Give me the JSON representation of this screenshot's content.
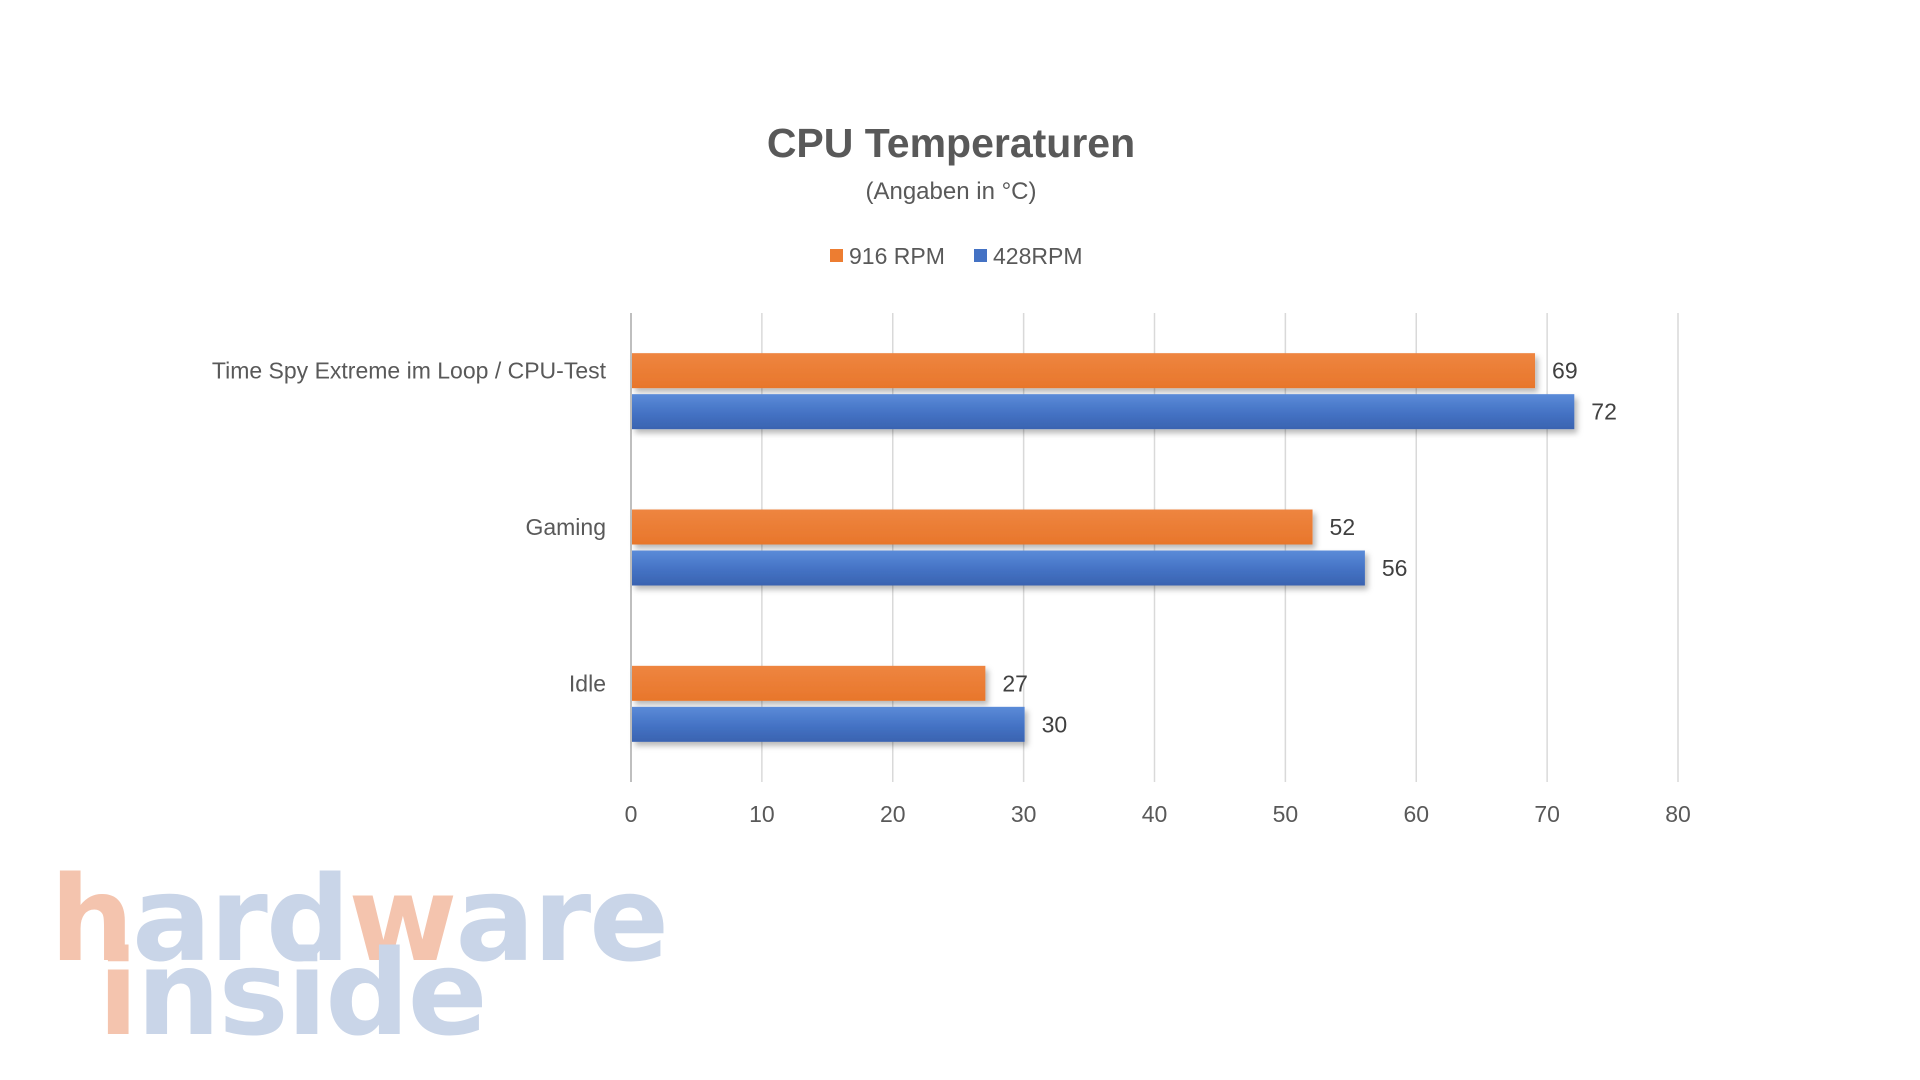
{
  "chart_data": {
    "type": "bar",
    "orientation": "horizontal",
    "title": "CPU Temperaturen",
    "subtitle": "(Angaben in °C)",
    "categories": [
      "Time Spy Extreme im Loop / CPU-Test",
      "Gaming",
      "Idle"
    ],
    "series": [
      {
        "name": "916 RPM",
        "color": "#ED7D31",
        "values": [
          69,
          52,
          27
        ]
      },
      {
        "name": "428RPM",
        "color": "#4472C4",
        "values": [
          72,
          56,
          30
        ]
      }
    ],
    "xlim": [
      0,
      80
    ],
    "xticks": [
      0,
      10,
      20,
      30,
      40,
      50,
      60,
      70,
      80
    ],
    "grid": "vertical",
    "legend_position": "top"
  },
  "watermark": {
    "line1": "hardware",
    "line2": "inside",
    "colors": {
      "accent": "#F4C4AE",
      "base": "#C9D5E8"
    }
  }
}
